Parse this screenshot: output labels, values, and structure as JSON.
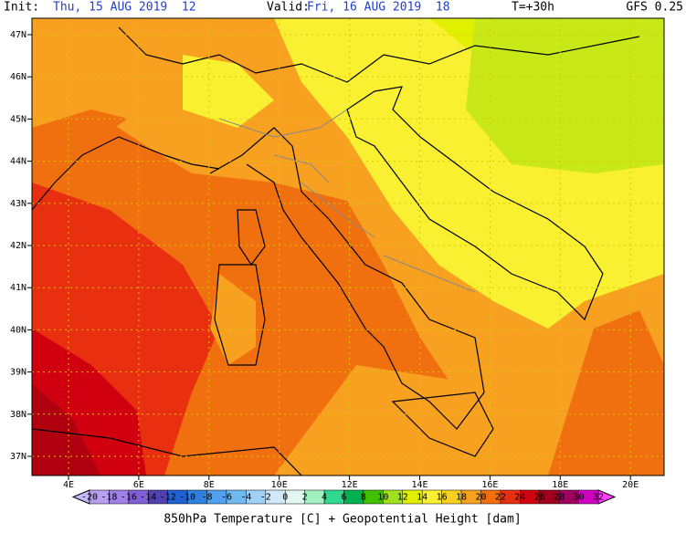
{
  "header": {
    "init_label": "Init:",
    "init": "Thu, 15 AUG 2019  12",
    "valid_label": "Valid:",
    "valid": "Fri, 16 AUG 2019  18",
    "lead": "T=+30h",
    "model": "GFS 0.25"
  },
  "map": {
    "lat_ticks": [
      "47N",
      "46N",
      "45N",
      "44N",
      "43N",
      "42N",
      "41N",
      "40N",
      "39N",
      "38N",
      "37N"
    ],
    "lon_ticks": [
      "4E",
      "6E",
      "8E",
      "10E",
      "12E",
      "14E",
      "16E",
      "18E",
      "20E"
    ]
  },
  "legend": {
    "title": "850hPa Temperature [C] + Geopotential Height [dam]",
    "ticks": [
      -20,
      -18,
      -16,
      -14,
      -12,
      -10,
      -8,
      -6,
      -4,
      -2,
      0,
      2,
      4,
      6,
      8,
      10,
      12,
      14,
      16,
      18,
      20,
      22,
      24,
      26,
      28,
      30,
      32
    ],
    "colors": [
      "#b8a0f0",
      "#a080e8",
      "#8060d8",
      "#5040b0",
      "#2060d0",
      "#3080e0",
      "#50a0f0",
      "#70b8f0",
      "#a0d0f8",
      "#d0e8f8",
      "#e0f8f0",
      "#a0f0c0",
      "#30d890",
      "#00b050",
      "#40c000",
      "#a0e020",
      "#e0f000",
      "#f8f030",
      "#f8d020",
      "#f8a020",
      "#f07010",
      "#e83010",
      "#d00010",
      "#a00020",
      "#a00060",
      "#d000c0"
    ],
    "low_color": "#c8b8f8",
    "high_color": "#ff40ff"
  }
}
